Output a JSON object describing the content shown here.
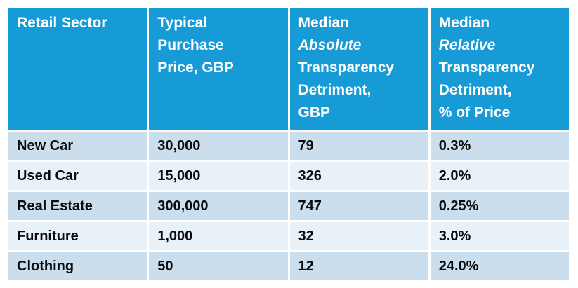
{
  "colors": {
    "header-bg": "#169BD7",
    "row-dark": "#CBDEEE",
    "row-light": "#E8F0F8",
    "header-text": "#FFFFFF",
    "cell-text": "#0B0B0B",
    "divider": "#FFFFFF"
  },
  "chart_data": {
    "type": "table",
    "columns": [
      "Retail Sector",
      "Typical Purchase Price, GBP",
      "Median Absolute Transparency Detriment, GBP",
      "Median Relative Transparency Detriment, % of Price"
    ],
    "rows": [
      [
        "New Car",
        "30,000",
        "79",
        "0.3%"
      ],
      [
        "Used Car",
        "15,000",
        "326",
        "2.0%"
      ],
      [
        "Real Estate",
        "300,000",
        "747",
        "0.25%"
      ],
      [
        "Furniture",
        "1,000",
        "32",
        "3.0%"
      ],
      [
        "Clothing",
        "50",
        "12",
        "24.0%"
      ]
    ],
    "series": [
      {
        "name": "Typical Purchase Price, GBP",
        "values": [
          30000,
          15000,
          300000,
          1000,
          50
        ]
      },
      {
        "name": "Median Absolute Transparency Detriment, GBP",
        "values": [
          79,
          326,
          747,
          32,
          12
        ]
      },
      {
        "name": "Median Relative Transparency Detriment, % of Price",
        "values": [
          0.3,
          2.0,
          0.25,
          3.0,
          24.0
        ]
      }
    ]
  },
  "display": {
    "headers": [
      {
        "pre": "Retail Sector",
        "italic": "",
        "post": ""
      },
      {
        "pre": "Typical\nPurchase\nPrice, GBP",
        "italic": "",
        "post": ""
      },
      {
        "pre": "Median\n",
        "italic": "Absolute",
        "post": "\nTransparency\nDetriment,\nGBP"
      },
      {
        "pre": "Median\n",
        "italic": "Relative",
        "post": "\nTransparency\nDetriment,\n% of Price"
      }
    ],
    "rows": [
      [
        "New Car",
        "30,000",
        "79",
        "0.3%"
      ],
      [
        "Used Car",
        "15,000",
        "326",
        "2.0%"
      ],
      [
        "Real Estate",
        "300,000",
        "747",
        "0.25%"
      ],
      [
        "Furniture",
        "1,000",
        "32",
        "3.0%"
      ],
      [
        "Clothing",
        "50",
        "12",
        "24.0%"
      ]
    ]
  }
}
